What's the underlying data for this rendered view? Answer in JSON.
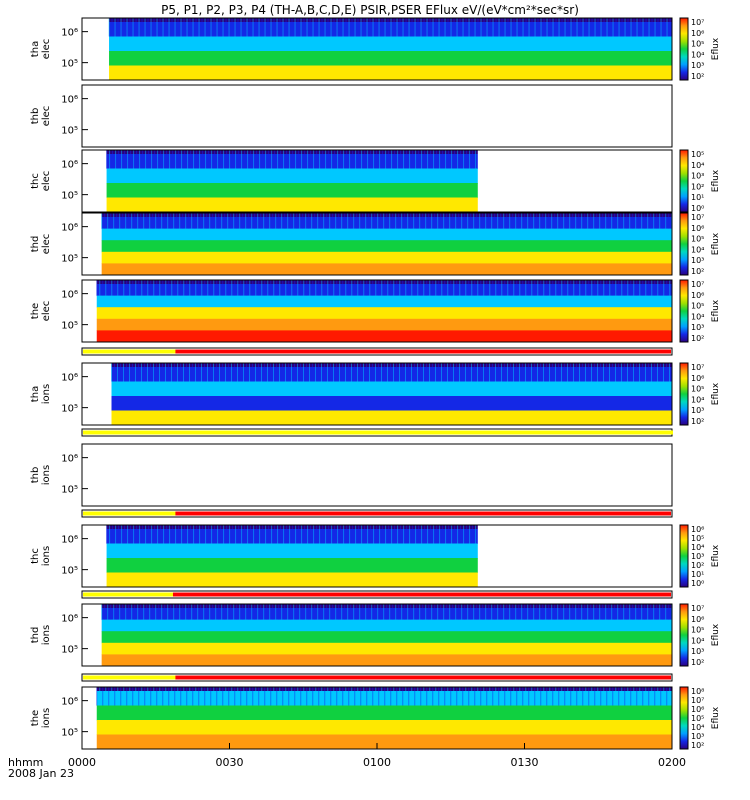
{
  "title": "P5, P1, P2, P3, P4 (TH-A,B,C,D,E) PSIR,PSER EFlux eV/(eV*cm²*sec*sr)",
  "footer": {
    "line1": "hhmm",
    "line2": "2008 Jan 23"
  },
  "colors": {
    "blue": "#1428e6",
    "cyan": "#00c8ff",
    "green": "#10d040",
    "yellow": "#ffe800",
    "orange": "#ff9a10",
    "red": "#ff1a00",
    "purple": "#2a0080",
    "quality_red": "#ff0000",
    "quality_yellow": "#ffff00"
  },
  "chart_data": {
    "type": "heatmap",
    "x_tick_labels": [
      "0000",
      "0030",
      "0100",
      "0130",
      "0200"
    ],
    "x_range_minutes": [
      0,
      120
    ],
    "panels": [
      {
        "id": "tha-elec",
        "ylabel": [
          "tha",
          "elec"
        ],
        "yticks": [
          "10⁵",
          "10⁶"
        ],
        "cbar_ticks": [
          "10²",
          "10³",
          "10⁴",
          "10⁵",
          "10⁶",
          "10⁷"
        ],
        "cbar_label": "Eflux",
        "data_minutes": [
          5.5,
          120
        ],
        "bands": [
          "blue",
          "cyan",
          "green",
          "yellow"
        ]
      },
      {
        "id": "thb-elec",
        "ylabel": [
          "thb",
          "elec"
        ],
        "yticks": [
          "10⁵",
          "10⁶"
        ],
        "cbar_ticks": [],
        "cbar_label": "",
        "data_minutes": null,
        "bands": []
      },
      {
        "id": "thc-elec",
        "ylabel": [
          "thc",
          "elec"
        ],
        "yticks": [
          "10⁵",
          "10⁶"
        ],
        "cbar_ticks": [
          "10⁰",
          "10¹",
          "10²",
          "10³",
          "10⁴",
          "10⁵"
        ],
        "cbar_label": "Eflux",
        "data_minutes": [
          5,
          80.5
        ],
        "bands": [
          "blue",
          "cyan",
          "green",
          "yellow"
        ]
      },
      {
        "id": "thd-elec",
        "ylabel": [
          "thd",
          "elec"
        ],
        "yticks": [
          "10⁵",
          "10⁶"
        ],
        "cbar_ticks": [
          "10²",
          "10³",
          "10⁴",
          "10⁵",
          "10⁶",
          "10⁷"
        ],
        "cbar_label": "Eflux",
        "data_minutes": [
          4,
          120
        ],
        "bands": [
          "blue",
          "cyan",
          "green",
          "yellow",
          "orange"
        ]
      },
      {
        "id": "the-elec",
        "ylabel": [
          "the",
          "elec"
        ],
        "yticks": [
          "10⁵",
          "10⁶"
        ],
        "cbar_ticks": [
          "10²",
          "10³",
          "10⁴",
          "10⁵",
          "10⁶",
          "10⁷"
        ],
        "cbar_label": "Eflux",
        "data_minutes": [
          3,
          120
        ],
        "bands": [
          "blue",
          "cyan",
          "yellow",
          "orange",
          "red"
        ]
      },
      {
        "id": "tha-ions",
        "ylabel": [
          "tha",
          "ions"
        ],
        "yticks": [
          "10⁵",
          "10⁶"
        ],
        "cbar_ticks": [
          "10²",
          "10³",
          "10⁴",
          "10⁵",
          "10⁶",
          "10⁷"
        ],
        "cbar_label": "Eflux",
        "data_minutes": [
          6,
          120
        ],
        "bands": [
          "blue",
          "cyan",
          "blue",
          "yellow"
        ]
      },
      {
        "id": "thb-ions",
        "ylabel": [
          "thb",
          "ions"
        ],
        "yticks": [
          "10⁵",
          "10⁶"
        ],
        "cbar_ticks": [],
        "cbar_label": "",
        "data_minutes": null,
        "bands": []
      },
      {
        "id": "thc-ions",
        "ylabel": [
          "thc",
          "ions"
        ],
        "yticks": [
          "10⁵",
          "10⁶"
        ],
        "cbar_ticks": [
          "10⁰",
          "10¹",
          "10²",
          "10³",
          "10⁴",
          "10⁵",
          "10⁶"
        ],
        "cbar_label": "Eflux",
        "data_minutes": [
          5,
          80.5
        ],
        "bands": [
          "blue",
          "cyan",
          "green",
          "yellow"
        ]
      },
      {
        "id": "thd-ions",
        "ylabel": [
          "thd",
          "ions"
        ],
        "yticks": [
          "10⁵",
          "10⁶"
        ],
        "cbar_ticks": [
          "10²",
          "10³",
          "10⁴",
          "10⁵",
          "10⁶",
          "10⁷"
        ],
        "cbar_label": "Eflux",
        "data_minutes": [
          4,
          120
        ],
        "bands": [
          "blue",
          "cyan",
          "green",
          "yellow",
          "orange"
        ]
      },
      {
        "id": "the-ions",
        "ylabel": [
          "the",
          "ions"
        ],
        "yticks": [
          "10⁵",
          "10⁶"
        ],
        "cbar_ticks": [
          "10²",
          "10³",
          "10⁴",
          "10⁵",
          "10⁶",
          "10⁷",
          "10⁸"
        ],
        "cbar_label": "Eflux",
        "data_minutes": [
          3,
          120
        ],
        "bands": [
          "cyan",
          "green",
          "yellow",
          "orange"
        ]
      }
    ],
    "quality_bars": [
      {
        "id": "qbar-1",
        "yellow_until_minutes": 19
      },
      {
        "id": "qbar-2",
        "yellow_until_minutes": 120
      },
      {
        "id": "qbar-3",
        "yellow_until_minutes": 19
      },
      {
        "id": "qbar-4",
        "yellow_until_minutes": 18.5
      },
      {
        "id": "qbar-5",
        "yellow_until_minutes": 19
      }
    ]
  }
}
